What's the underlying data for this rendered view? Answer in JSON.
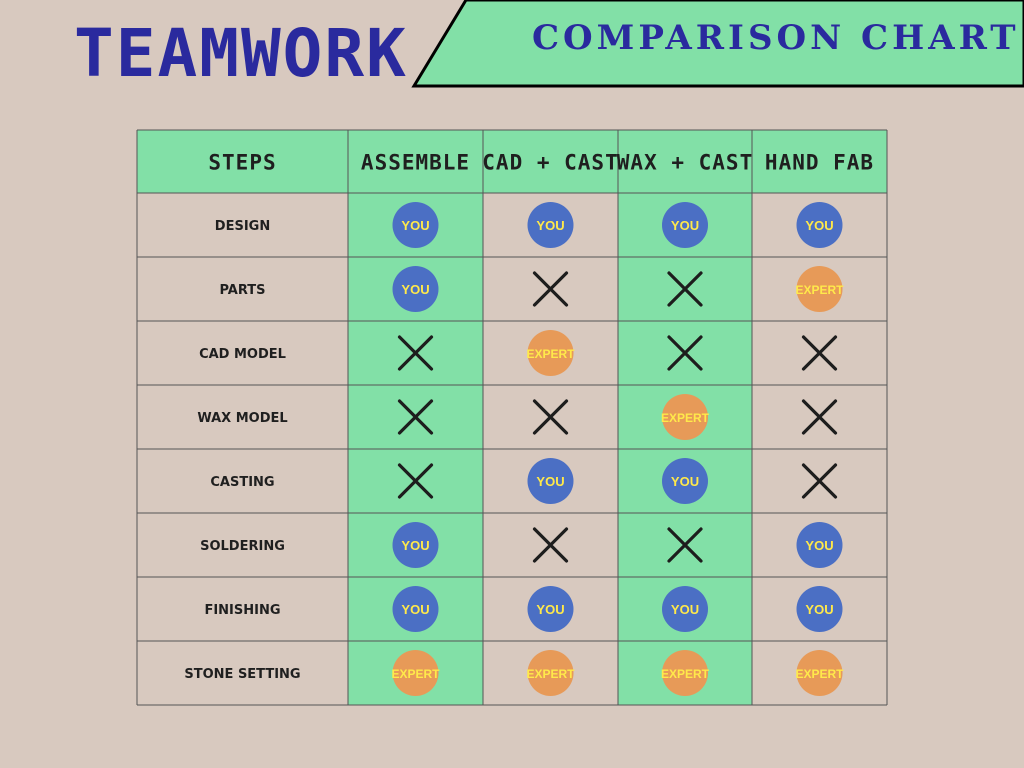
{
  "header": {
    "title": "TEAMWORK",
    "subtitle": "COMPARISON CHART"
  },
  "colors": {
    "background": "#d8c9bf",
    "accent_green": "#82e0a7",
    "title_blue": "#2a2a9e",
    "you_badge": "#4b6fc4",
    "expert_badge": "#e79a58",
    "badge_text": "#ffe94a",
    "cross": "#1d1d1d",
    "grid_line": "#555555",
    "label_text": "#1f1f1f"
  },
  "chart_data": {
    "type": "table",
    "corner_label": "STEPS",
    "columns": [
      "ASSEMBLE",
      "CAD + CAST",
      "WAX + CAST",
      "HAND FAB"
    ],
    "rows": [
      {
        "label": "DESIGN",
        "cells": [
          "YOU",
          "YOU",
          "YOU",
          "YOU"
        ]
      },
      {
        "label": "PARTS",
        "cells": [
          "YOU",
          "X",
          "X",
          "EXPERT"
        ]
      },
      {
        "label": "CAD MODEL",
        "cells": [
          "X",
          "EXPERT",
          "X",
          "X"
        ]
      },
      {
        "label": "WAX MODEL",
        "cells": [
          "X",
          "X",
          "EXPERT",
          "X"
        ]
      },
      {
        "label": "CASTING",
        "cells": [
          "X",
          "YOU",
          "YOU",
          "X"
        ]
      },
      {
        "label": "SOLDERING",
        "cells": [
          "YOU",
          "X",
          "X",
          "YOU"
        ]
      },
      {
        "label": "FINISHING",
        "cells": [
          "YOU",
          "YOU",
          "YOU",
          "YOU"
        ]
      },
      {
        "label": "STONE SETTING",
        "cells": [
          "EXPERT",
          "EXPERT",
          "EXPERT",
          "EXPERT"
        ]
      }
    ]
  }
}
